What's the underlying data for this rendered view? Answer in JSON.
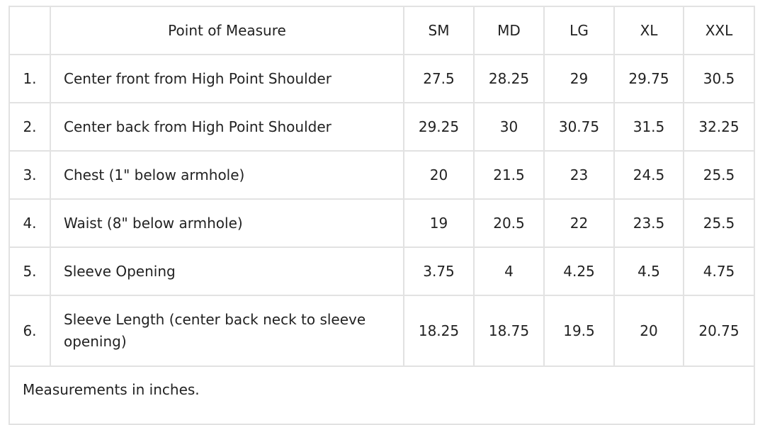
{
  "table": {
    "headers": [
      "",
      "Point of Measure",
      "SM",
      "MD",
      "LG",
      "XL",
      "XXL"
    ],
    "rows": [
      {
        "num": "1.",
        "point": "Center front from High Point Shoulder",
        "values": [
          "27.5",
          "28.25",
          "29",
          "29.75",
          "30.5"
        ]
      },
      {
        "num": "2.",
        "point": "Center back from High Point Shoulder",
        "values": [
          "29.25",
          "30",
          "30.75",
          "31.5",
          "32.25"
        ]
      },
      {
        "num": "3.",
        "point": "Chest (1\" below armhole)",
        "values": [
          "20",
          "21.5",
          "23",
          "24.5",
          "25.5"
        ]
      },
      {
        "num": "4.",
        "point": "Waist (8\" below armhole)",
        "values": [
          "19",
          "20.5",
          "22",
          "23.5",
          "25.5"
        ]
      },
      {
        "num": "5.",
        "point": "Sleeve Opening",
        "values": [
          "3.75",
          "4",
          "4.25",
          "4.5",
          "4.75"
        ]
      },
      {
        "num": "6.",
        "point": "Sleeve Length (center back neck to sleeve opening)",
        "values": [
          "18.25",
          "18.75",
          "19.5",
          "20",
          "20.75"
        ]
      }
    ],
    "footnote": "Measurements in inches."
  }
}
